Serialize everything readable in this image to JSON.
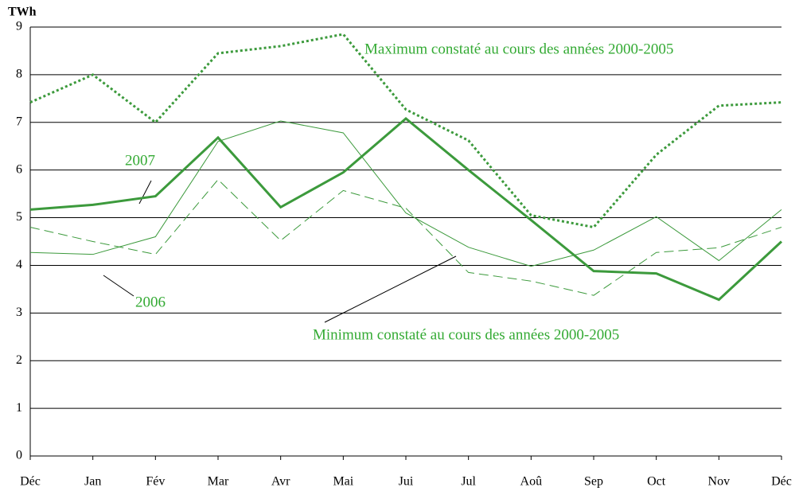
{
  "chart_data": {
    "type": "line",
    "y_label": "TWh",
    "categories": [
      "Déc",
      "Jan",
      "Fév",
      "Mar",
      "Avr",
      "Mai",
      "Jui",
      "Jul",
      "Aoû",
      "Sep",
      "Oct",
      "Nov",
      "Déc"
    ],
    "series": [
      {
        "name": "2007",
        "color": "#3c9a3c",
        "line_style": "solid",
        "line_width": 3,
        "values": [
          5.17,
          5.27,
          5.45,
          6.68,
          5.22,
          5.95,
          7.08,
          6.0,
          4.95,
          3.88,
          3.83,
          3.28,
          4.5
        ]
      },
      {
        "name": "Maximum constaté au cours des années 2000-2005",
        "color": "#3c9a3c",
        "line_style": "dotted",
        "line_width": 3,
        "values": [
          7.42,
          8.0,
          7.0,
          8.45,
          8.6,
          8.85,
          7.27,
          6.62,
          5.05,
          4.8,
          6.32,
          7.35,
          7.42
        ]
      },
      {
        "name": "2006",
        "color": "#3c9a3c",
        "line_style": "solid",
        "line_width": 1,
        "values": [
          4.27,
          4.23,
          4.6,
          6.6,
          7.03,
          6.78,
          5.1,
          4.38,
          3.98,
          4.32,
          5.02,
          4.1,
          5.17
        ]
      },
      {
        "name": "Minimum constaté au cours des années 2000-2005",
        "color": "#3c9a3c",
        "line_style": "dashed",
        "line_width": 1,
        "values": [
          4.8,
          4.5,
          4.23,
          5.8,
          4.52,
          5.57,
          5.2,
          3.85,
          3.67,
          3.37,
          4.27,
          4.37,
          4.8
        ]
      }
    ],
    "ylim": [
      0,
      9
    ],
    "yticks": [
      0,
      1,
      2,
      3,
      4,
      5,
      6,
      7,
      8,
      9
    ],
    "grid": true,
    "label_color": "#33aa33"
  }
}
